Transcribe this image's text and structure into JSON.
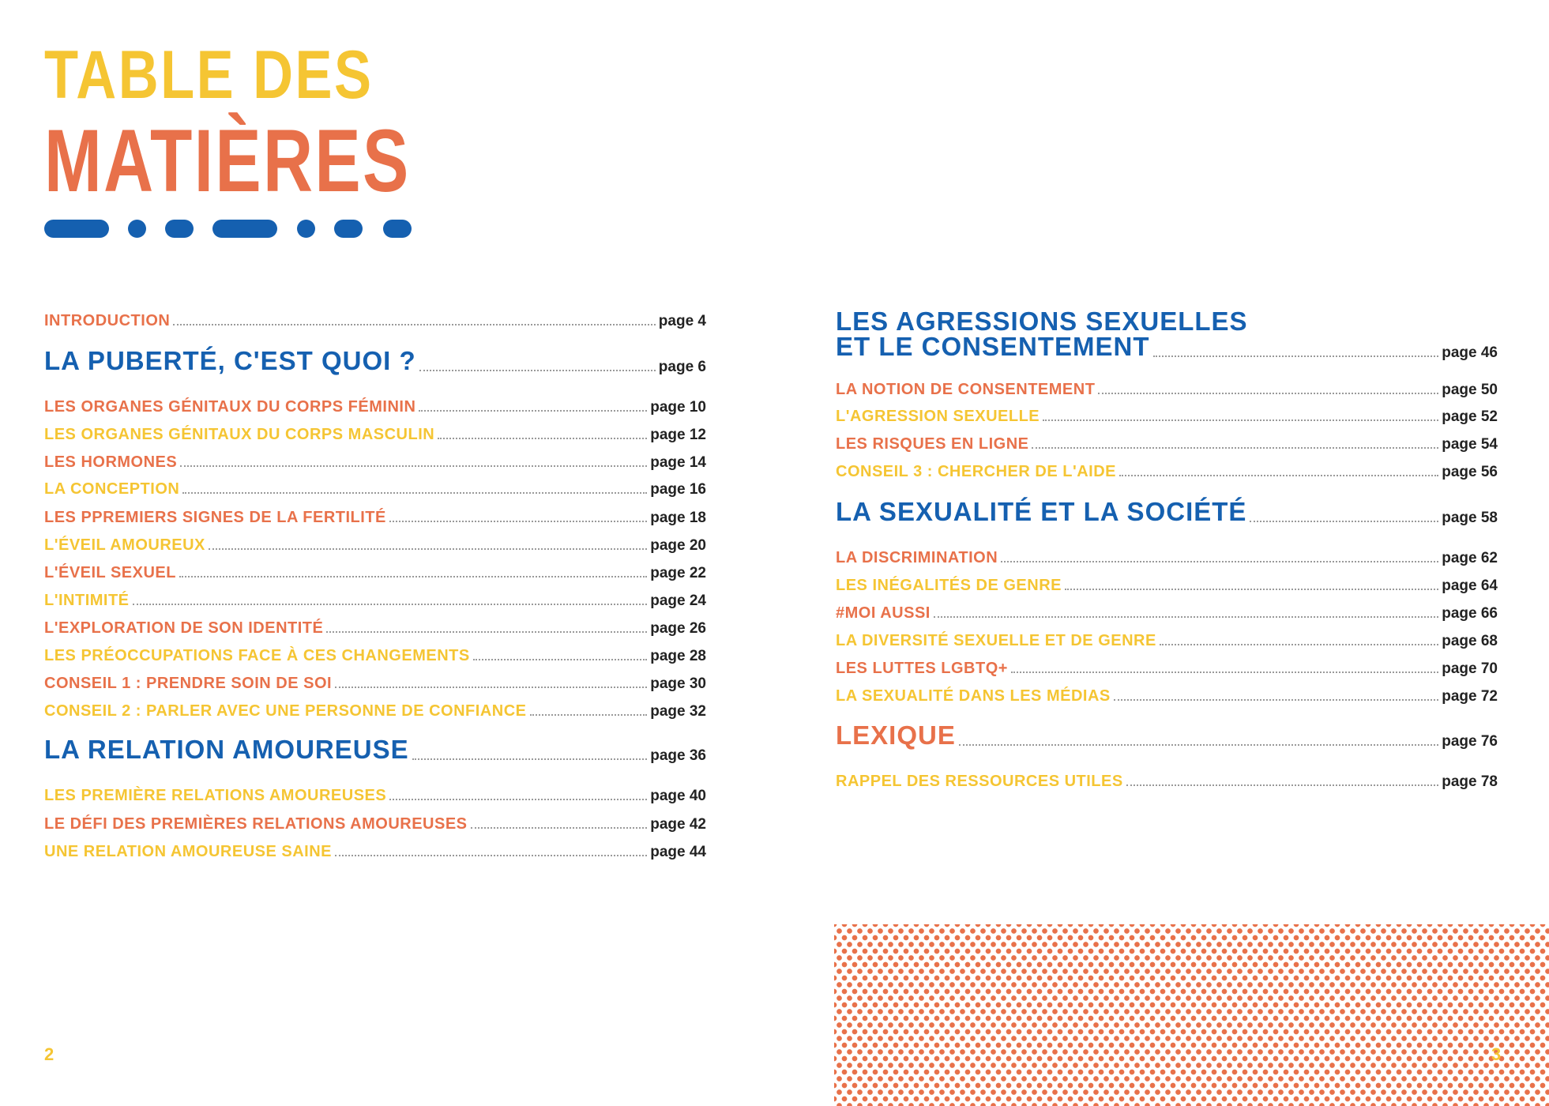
{
  "title": {
    "line1": "TABLE DES",
    "line2": "MATIÈRES"
  },
  "colors": {
    "orange": "#e8714a",
    "yellow": "#f5c533",
    "blue": "#1560b0"
  },
  "left": [
    {
      "label": "INTRODUCTION",
      "page": "page 4",
      "style": "orange"
    },
    {
      "label": "LA PUBERTÉ, C'EST QUOI ?",
      "page": "page 6",
      "style": "heading"
    },
    {
      "label": "LES ORGANES GÉNITAUX DU CORPS FÉMININ",
      "page": "page 10",
      "style": "orange"
    },
    {
      "label": "LES ORGANES GÉNITAUX DU CORPS MASCULIN",
      "page": "page 12",
      "style": "yellow"
    },
    {
      "label": "LES HORMONES",
      "page": "page 14",
      "style": "orange"
    },
    {
      "label": "LA CONCEPTION",
      "page": "page 16",
      "style": "yellow"
    },
    {
      "label": "LES PPREMIERS SIGNES DE LA FERTILITÉ",
      "page": "page 18",
      "style": "orange"
    },
    {
      "label": "L'ÉVEIL AMOUREUX",
      "page": "page 20",
      "style": "yellow"
    },
    {
      "label": "L'ÉVEIL SEXUEL",
      "page": "page 22",
      "style": "orange"
    },
    {
      "label": "L'INTIMITÉ",
      "page": "page 24",
      "style": "yellow"
    },
    {
      "label": "L'EXPLORATION DE SON IDENTITÉ",
      "page": "page 26",
      "style": "orange"
    },
    {
      "label": "LES PRÉOCCUPATIONS FACE À CES CHANGEMENTS",
      "page": "page 28",
      "style": "yellow"
    },
    {
      "label": "CONSEIL 1 : PRENDRE SOIN DE SOI",
      "page": "page 30",
      "style": "orange"
    },
    {
      "label": "CONSEIL 2 : PARLER AVEC UNE PERSONNE DE CONFIANCE",
      "page": "page 32",
      "style": "yellow"
    },
    {
      "label": "LA RELATION AMOUREUSE",
      "page": "page 36",
      "style": "heading"
    },
    {
      "label": "LES PREMIÈRE RELATIONS AMOUREUSES",
      "page": "page 40",
      "style": "yellow"
    },
    {
      "label": "LE DÉFI DES PREMIÈRES RELATIONS AMOUREUSES",
      "page": "page 42",
      "style": "orange"
    },
    {
      "label": "UNE RELATION AMOUREUSE SAINE",
      "page": "page 44",
      "style": "yellow"
    }
  ],
  "right_heading": {
    "line1": "LES AGRESSIONS SEXUELLES",
    "line2": "ET LE CONSENTEMENT",
    "page": "page 46"
  },
  "right": [
    {
      "label": "LA NOTION DE CONSENTEMENT",
      "page": "page 50",
      "style": "orange"
    },
    {
      "label": "L'AGRESSION SEXUELLE",
      "page": "page 52",
      "style": "yellow"
    },
    {
      "label": "LES RISQUES EN LIGNE",
      "page": "page 54",
      "style": "orange"
    },
    {
      "label": "CONSEIL 3 : CHERCHER DE L'AIDE",
      "page": "page 56",
      "style": "yellow"
    },
    {
      "label": "LA SEXUALITÉ ET LA SOCIÉTÉ",
      "page": "page 58",
      "style": "heading"
    },
    {
      "label": "LA DISCRIMINATION",
      "page": "page 62",
      "style": "orange"
    },
    {
      "label": "LES INÉGALITÉS DE GENRE",
      "page": "page 64",
      "style": "yellow"
    },
    {
      "label": "#MOI AUSSI",
      "page": "page 66",
      "style": "orange"
    },
    {
      "label": "LA DIVERSITÉ SEXUELLE ET DE GENRE",
      "page": "page 68",
      "style": "yellow"
    },
    {
      "label": "LES LUTTES LGBTQ+",
      "page": "page 70",
      "style": "orange"
    },
    {
      "label": "LA SEXUALITÉ DANS LES MÉDIAS",
      "page": "page 72",
      "style": "yellow"
    },
    {
      "label": "LEXIQUE",
      "page": "page 76",
      "style": "heading-orange"
    },
    {
      "label": "RAPPEL DES RESSOURCES UTILES",
      "page": "page 78",
      "style": "yellow"
    }
  ],
  "page_numbers": {
    "left": "2",
    "right": "3"
  }
}
